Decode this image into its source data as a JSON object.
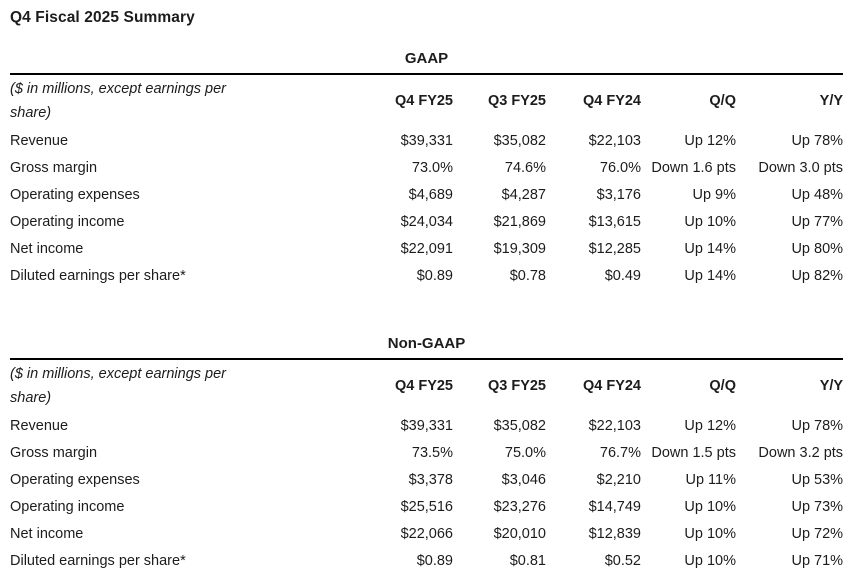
{
  "page_title": "Q4 Fiscal 2025 Summary",
  "colors": {
    "text": "#1c1c1c",
    "rule": "#000000",
    "background": "#ffffff"
  },
  "tables": [
    {
      "title": "GAAP",
      "note": "($ in millions, except earnings per share)",
      "columns": [
        "Q4 FY25",
        "Q3 FY25",
        "Q4 FY24",
        "Q/Q",
        "Y/Y"
      ],
      "rows": [
        {
          "label": "Revenue",
          "values": [
            "$39,331",
            "$35,082",
            "$22,103",
            "Up 12%",
            "Up 78%"
          ]
        },
        {
          "label": "Gross margin",
          "values": [
            "73.0%",
            "74.6%",
            "76.0%",
            "Down 1.6 pts",
            "Down 3.0 pts"
          ]
        },
        {
          "label": "Operating expenses",
          "values": [
            "$4,689",
            "$4,287",
            "$3,176",
            "Up 9%",
            "Up 48%"
          ]
        },
        {
          "label": "Operating income",
          "values": [
            "$24,034",
            "$21,869",
            "$13,615",
            "Up 10%",
            "Up 77%"
          ]
        },
        {
          "label": "Net income",
          "values": [
            "$22,091",
            "$19,309",
            "$12,285",
            "Up 14%",
            "Up 80%"
          ]
        },
        {
          "label": "Diluted earnings per share*",
          "values": [
            "$0.89",
            "$0.78",
            "$0.49",
            "Up 14%",
            "Up 82%"
          ]
        }
      ]
    },
    {
      "title": "Non-GAAP",
      "note": "($ in millions, except earnings per share)",
      "columns": [
        "Q4 FY25",
        "Q3 FY25",
        "Q4 FY24",
        "Q/Q",
        "Y/Y"
      ],
      "rows": [
        {
          "label": "Revenue",
          "values": [
            "$39,331",
            "$35,082",
            "$22,103",
            "Up 12%",
            "Up 78%"
          ]
        },
        {
          "label": "Gross margin",
          "values": [
            "73.5%",
            "75.0%",
            "76.7%",
            "Down 1.5 pts",
            "Down 3.2 pts"
          ]
        },
        {
          "label": "Operating expenses",
          "values": [
            "$3,378",
            "$3,046",
            "$2,210",
            "Up 11%",
            "Up 53%"
          ]
        },
        {
          "label": "Operating income",
          "values": [
            "$25,516",
            "$23,276",
            "$14,749",
            "Up 10%",
            "Up 73%"
          ]
        },
        {
          "label": "Net income",
          "values": [
            "$22,066",
            "$20,010",
            "$12,839",
            "Up 10%",
            "Up 72%"
          ]
        },
        {
          "label": "Diluted earnings per share*",
          "values": [
            "$0.89",
            "$0.81",
            "$0.52",
            "Up 10%",
            "Up 71%"
          ]
        }
      ]
    }
  ]
}
